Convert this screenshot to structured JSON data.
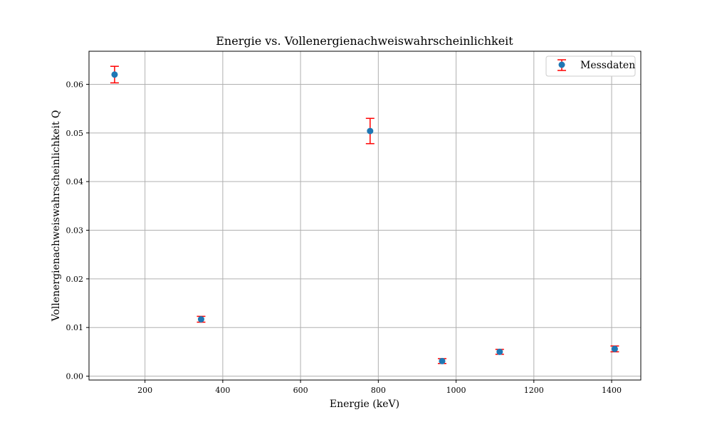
{
  "chart_data": {
    "type": "scatter",
    "title": "Energie vs. Vollenergienachweiswahrscheinlichkeit",
    "xlabel": "Energie (keV)",
    "ylabel": "Vollenergienachweiswahrscheinlichkeit Q",
    "xlim": [
      56,
      1475
    ],
    "ylim": [
      -0.0008,
      0.0668
    ],
    "xticks": [
      200,
      400,
      600,
      800,
      1000,
      1200,
      1400
    ],
    "yticks": [
      0.0,
      0.01,
      0.02,
      0.03,
      0.04,
      0.05,
      0.06
    ],
    "ytick_labels": [
      "0.00",
      "0.01",
      "0.02",
      "0.03",
      "0.04",
      "0.05",
      "0.06"
    ],
    "grid": true,
    "legend_position": "top-right",
    "series": [
      {
        "name": "Messdaten",
        "marker_color": "#1f77b4",
        "errorbar_color": "#ff0000",
        "points": [
          {
            "x": 121.8,
            "y": 0.062,
            "yerr": 0.0017
          },
          {
            "x": 344.3,
            "y": 0.0117,
            "yerr": 0.0006
          },
          {
            "x": 778.9,
            "y": 0.0504,
            "yerr": 0.0026
          },
          {
            "x": 964.1,
            "y": 0.0031,
            "yerr": 0.0005
          },
          {
            "x": 1112.1,
            "y": 0.005,
            "yerr": 0.0005
          },
          {
            "x": 1408.0,
            "y": 0.0056,
            "yerr": 0.0006
          }
        ]
      }
    ]
  }
}
